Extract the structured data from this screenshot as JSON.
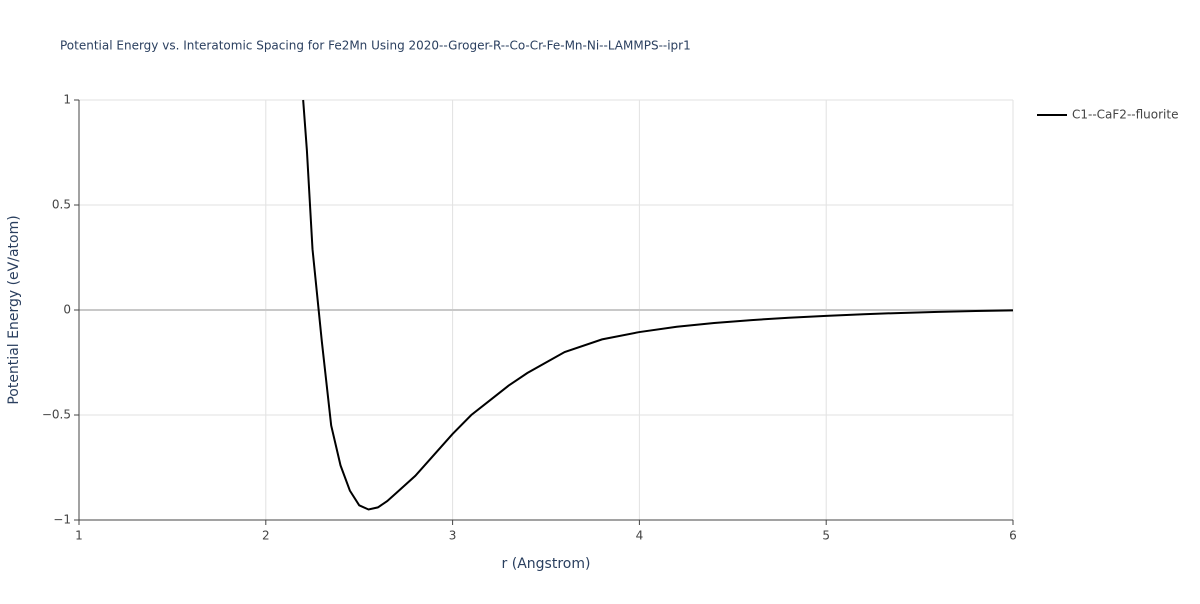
{
  "chart_data": {
    "type": "line",
    "title": "Potential Energy vs. Interatomic Spacing for Fe2Mn Using 2020--Groger-R--Co-Cr-Fe-Mn-Ni--LAMMPS--ipr1",
    "x_label": "r (Angstrom)",
    "y_label": "Potential Energy (eV/atom)",
    "x": [
      2.2,
      2.22,
      2.25,
      2.3,
      2.35,
      2.4,
      2.45,
      2.5,
      2.55,
      2.6,
      2.65,
      2.7,
      2.8,
      2.9,
      3.0,
      3.1,
      3.2,
      3.3,
      3.4,
      3.5,
      3.6,
      3.8,
      4.0,
      4.2,
      4.4,
      4.6,
      4.8,
      5.0,
      5.2,
      5.4,
      5.6,
      5.8,
      6.0
    ],
    "series": [
      {
        "name": "C1--CaF2--fluorite",
        "color": "#000000",
        "values": [
          1.0,
          0.76,
          0.29,
          -0.15,
          -0.55,
          -0.74,
          -0.86,
          -0.93,
          -0.95,
          -0.94,
          -0.91,
          -0.87,
          -0.79,
          -0.69,
          -0.59,
          -0.5,
          -0.43,
          -0.36,
          -0.3,
          -0.25,
          -0.2,
          -0.14,
          -0.105,
          -0.08,
          -0.062,
          -0.048,
          -0.037,
          -0.028,
          -0.02,
          -0.014,
          -0.009,
          -0.005,
          -0.002
        ]
      }
    ],
    "xlim": [
      1,
      6
    ],
    "xticks": [
      1,
      2,
      3,
      4,
      5,
      6
    ],
    "ylim": [
      -1,
      1
    ],
    "yticks": [
      {
        "value": -1,
        "label": "−1"
      },
      {
        "value": -0.5,
        "label": "−0.5"
      },
      0,
      0.5,
      1
    ],
    "grid": true,
    "legend": "right"
  }
}
